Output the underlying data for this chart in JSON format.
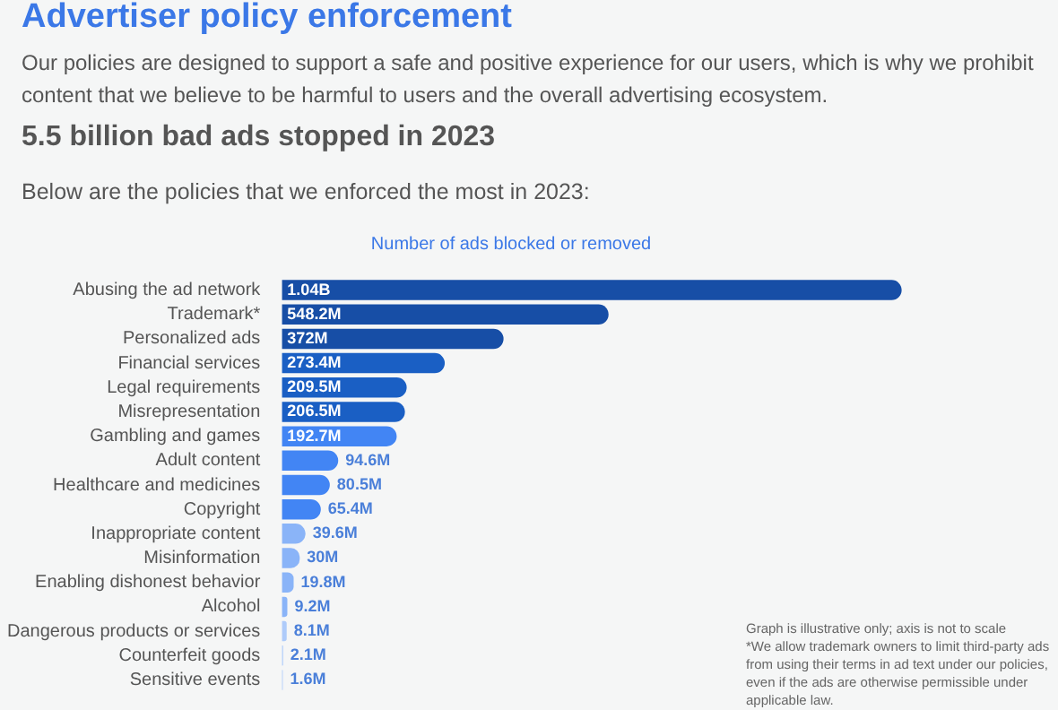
{
  "chart_data": {
    "type": "bar",
    "orientation": "horizontal",
    "title": "Advertiser policy enforcement",
    "subtitle": "Our policies are designed to support a safe and positive experience for our users, which is why we prohibit content that we believe to be harmful to users and the overall advertising ecosystem.",
    "xlabel": "Number of ads blocked or removed",
    "annotations": [
      "5.5 billion bad ads stopped in 2023",
      "Below are the policies that we enforced the most in 2023:",
      "Graph is illustrative only; axis is not to scale",
      "*We allow trademark owners to limit third-party ads from using their terms in ad text under our policies, even if the ads are otherwise permissible under applicable law."
    ],
    "categories": [
      "Abusing the ad network",
      "Trademark*",
      "Personalized ads",
      "Financial services",
      "Legal requirements",
      "Misrepresentation",
      "Gambling and games",
      "Adult content",
      "Healthcare and medicines",
      "Copyright",
      "Inappropriate content",
      "Misinformation",
      "Enabling dishonest behavior",
      "Alcohol",
      "Dangerous products or services",
      "Counterfeit goods",
      "Sensitive events"
    ],
    "values": [
      1040000000,
      548200000,
      372000000,
      273400000,
      209500000,
      206500000,
      192700000,
      94600000,
      80500000,
      65400000,
      39600000,
      30000000,
      19800000,
      9200000,
      8100000,
      2100000,
      1600000
    ],
    "value_labels": [
      "1.04B",
      "548.2M",
      "372M",
      "273.4M",
      "209.5M",
      "206.5M",
      "192.7M",
      "94.6M",
      "80.5M",
      "65.4M",
      "39.6M",
      "30M",
      "19.8M",
      "9.2M",
      "8.1M",
      "2.1M",
      "1.6M"
    ],
    "colors": [
      "#174ea6",
      "#174ea6",
      "#174ea6",
      "#1a5fc4",
      "#1a5fc4",
      "#1a5fc4",
      "#4285f4",
      "#4285f4",
      "#4285f4",
      "#4285f4",
      "#8ab4f8",
      "#8ab4f8",
      "#8ab4f8",
      "#8ab4f8",
      "#aecbfa",
      "#aecbfa",
      "#aecbfa"
    ],
    "legend": false
  }
}
